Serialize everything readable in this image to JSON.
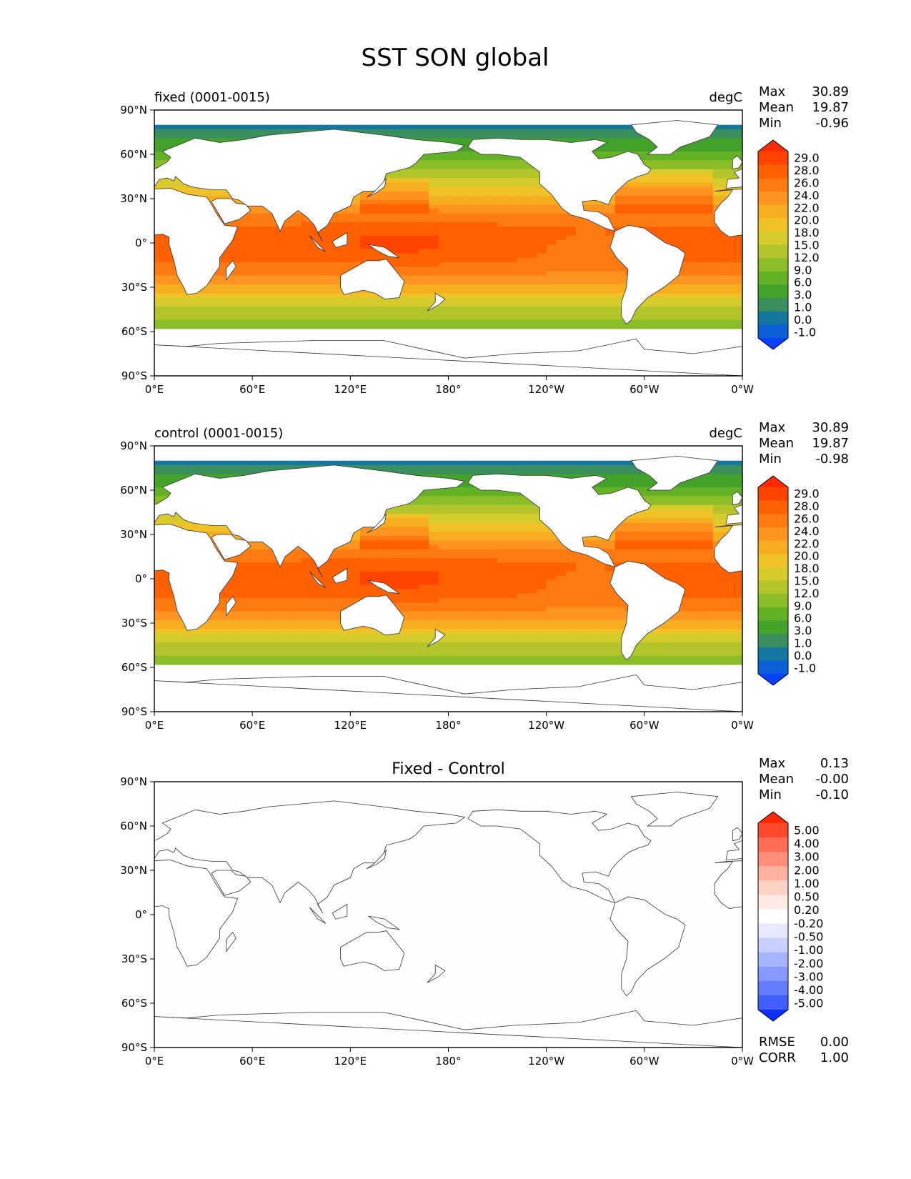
{
  "title": "SST SON global",
  "chart_data": [
    {
      "type": "heatmap",
      "panel_title_left": "fixed (0001-0015)",
      "panel_title_right": "degC",
      "stats": [
        {
          "label": "Max",
          "value": "30.89"
        },
        {
          "label": "Mean",
          "value": "19.87"
        },
        {
          "label": "Min",
          "value": "-0.96"
        }
      ],
      "xticks": [
        "0°E",
        "60°E",
        "120°E",
        "180°",
        "120°W",
        "60°W",
        "0°W"
      ],
      "yticks": [
        "90°N",
        "60°N",
        "30°N",
        "0°",
        "30°S",
        "60°S",
        "90°S"
      ],
      "xlim": [
        0,
        360
      ],
      "ylim": [
        -90,
        90
      ],
      "colorbar": {
        "labels": [
          "29.0",
          "28.0",
          "26.0",
          "24.0",
          "22.0",
          "20.0",
          "18.0",
          "15.0",
          "12.0",
          "9.0",
          "6.0",
          "3.0",
          "1.0",
          "0.0",
          "-1.0"
        ],
        "colors_top_to_bottom": [
          "#ff2a00",
          "#ff4400",
          "#ff6000",
          "#ff7a10",
          "#ff9420",
          "#f7ad20",
          "#efc227",
          "#d6cb2c",
          "#b3c52a",
          "#8bbd28",
          "#63b225",
          "#42a22a",
          "#3b8f5e",
          "#1477a0",
          "#0c5fd6",
          "#0840ff"
        ]
      }
    },
    {
      "type": "heatmap",
      "panel_title_left": "control (0001-0015)",
      "panel_title_right": "degC",
      "stats": [
        {
          "label": "Max",
          "value": "30.89"
        },
        {
          "label": "Mean",
          "value": "19.87"
        },
        {
          "label": "Min",
          "value": "-0.98"
        }
      ],
      "xticks": [
        "0°E",
        "60°E",
        "120°E",
        "180°",
        "120°W",
        "60°W",
        "0°W"
      ],
      "yticks": [
        "90°N",
        "60°N",
        "30°N",
        "0°",
        "30°S",
        "60°S",
        "90°S"
      ],
      "xlim": [
        0,
        360
      ],
      "ylim": [
        -90,
        90
      ],
      "colorbar": {
        "labels": [
          "29.0",
          "28.0",
          "26.0",
          "24.0",
          "22.0",
          "20.0",
          "18.0",
          "15.0",
          "12.0",
          "9.0",
          "6.0",
          "3.0",
          "1.0",
          "0.0",
          "-1.0"
        ],
        "colors_top_to_bottom": [
          "#ff2a00",
          "#ff4400",
          "#ff6000",
          "#ff7a10",
          "#ff9420",
          "#f7ad20",
          "#efc227",
          "#d6cb2c",
          "#b3c52a",
          "#8bbd28",
          "#63b225",
          "#42a22a",
          "#3b8f5e",
          "#1477a0",
          "#0c5fd6",
          "#0840ff"
        ]
      }
    },
    {
      "type": "heatmap",
      "panel_title_center": "Fixed - Control",
      "stats": [
        {
          "label": "Max",
          "value": "0.13"
        },
        {
          "label": "Mean",
          "value": "-0.00"
        },
        {
          "label": "Min",
          "value": "-0.10"
        }
      ],
      "extra_stats": [
        {
          "label": "RMSE",
          "value": "0.00"
        },
        {
          "label": "CORR",
          "value": "1.00"
        }
      ],
      "xticks": [
        "0°E",
        "60°E",
        "120°E",
        "180°",
        "120°W",
        "60°W",
        "0°W"
      ],
      "yticks": [
        "90°N",
        "60°N",
        "30°N",
        "0°",
        "30°S",
        "60°S",
        "90°S"
      ],
      "xlim": [
        0,
        360
      ],
      "ylim": [
        -90,
        90
      ],
      "colorbar": {
        "labels": [
          "5.00",
          "4.00",
          "3.00",
          "2.00",
          "1.00",
          "0.50",
          "0.20",
          "-0.20",
          "-0.50",
          "-1.00",
          "-2.00",
          "-3.00",
          "-4.00",
          "-5.00"
        ],
        "colors_top_to_bottom": [
          "#ff2a00",
          "#ff4a2e",
          "#ff6d55",
          "#ff8f7a",
          "#ffb2a0",
          "#ffd2c6",
          "#ffeae4",
          "#ffffff",
          "#e6e9ff",
          "#c8d0ff",
          "#a7b5ff",
          "#8699ff",
          "#647cff",
          "#415eff",
          "#0a30ff"
        ]
      }
    }
  ]
}
